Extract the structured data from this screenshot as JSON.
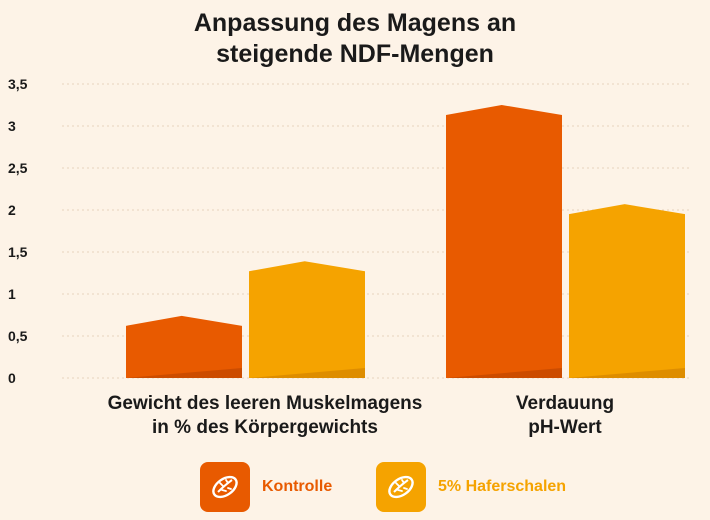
{
  "chart_data": {
    "type": "bar",
    "title_lines": [
      "Anpassung des Magens an",
      "steigende NDF-Mengen"
    ],
    "categories": [
      [
        "Gewicht des leeren Muskelmagens",
        "in % des Körpergewichts"
      ],
      [
        "Verdauung",
        "pH-Wert"
      ]
    ],
    "series": [
      {
        "name": "Kontrolle",
        "values": [
          0.74,
          3.25
        ],
        "color": "#e85a00",
        "icon": "grain-icon"
      },
      {
        "name": "5% Haferschalen",
        "values": [
          1.39,
          2.07
        ],
        "color": "#f5a300",
        "icon": "grain-icon"
      }
    ],
    "yticks": [
      "0",
      "0,5",
      "1",
      "1,5",
      "2",
      "2,5",
      "3",
      "3,5"
    ],
    "ylim": [
      0,
      3.5
    ],
    "grid": true,
    "legend_position": "bottom"
  }
}
